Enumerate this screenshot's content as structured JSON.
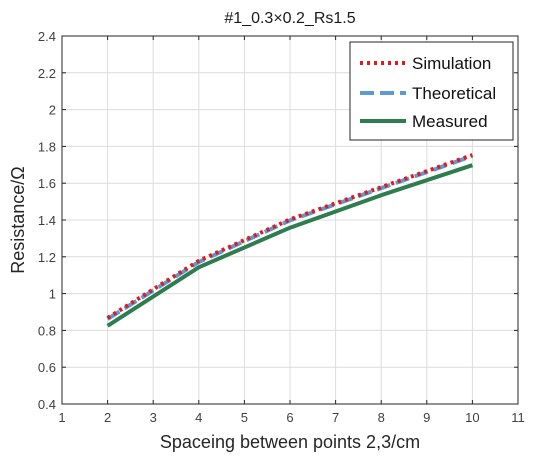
{
  "chart_data": {
    "type": "line",
    "title": "#1_0.3×0.2_Rs1.5",
    "xlabel": "Spaceing between points 2,3/cm",
    "ylabel": "Resistance/Ω",
    "xlim": [
      1,
      11
    ],
    "ylim": [
      0.4,
      2.4
    ],
    "xticks": [
      1,
      2,
      3,
      4,
      5,
      6,
      7,
      8,
      9,
      10,
      11
    ],
    "yticks": [
      0.4,
      0.6,
      0.8,
      1.0,
      1.2,
      1.4,
      1.6,
      1.8,
      2.0,
      2.2,
      2.4
    ],
    "xtick_labels": [
      "1",
      "2",
      "3",
      "4",
      "5",
      "6",
      "7",
      "8",
      "9",
      "10",
      "11"
    ],
    "ytick_labels": [
      "0.4",
      "0.6",
      "0.8",
      "1",
      "1.2",
      "1.4",
      "1.6",
      "1.8",
      "2",
      "2.2",
      "2.4"
    ],
    "grid": true,
    "legend_position": "top-right",
    "x": [
      2,
      4,
      6,
      8,
      10
    ],
    "series": [
      {
        "name": "Simulation",
        "values": [
          0.868,
          1.178,
          1.403,
          1.578,
          1.753
        ],
        "color": "#e31a1c",
        "style": "dotted"
      },
      {
        "name": "Theoretical",
        "values": [
          0.862,
          1.172,
          1.398,
          1.573,
          1.748
        ],
        "color": "#5b9bd5",
        "style": "dashed"
      },
      {
        "name": "Measured",
        "values": [
          0.825,
          1.143,
          1.358,
          1.535,
          1.698
        ],
        "color": "#2e7d4f",
        "style": "solid"
      }
    ]
  }
}
